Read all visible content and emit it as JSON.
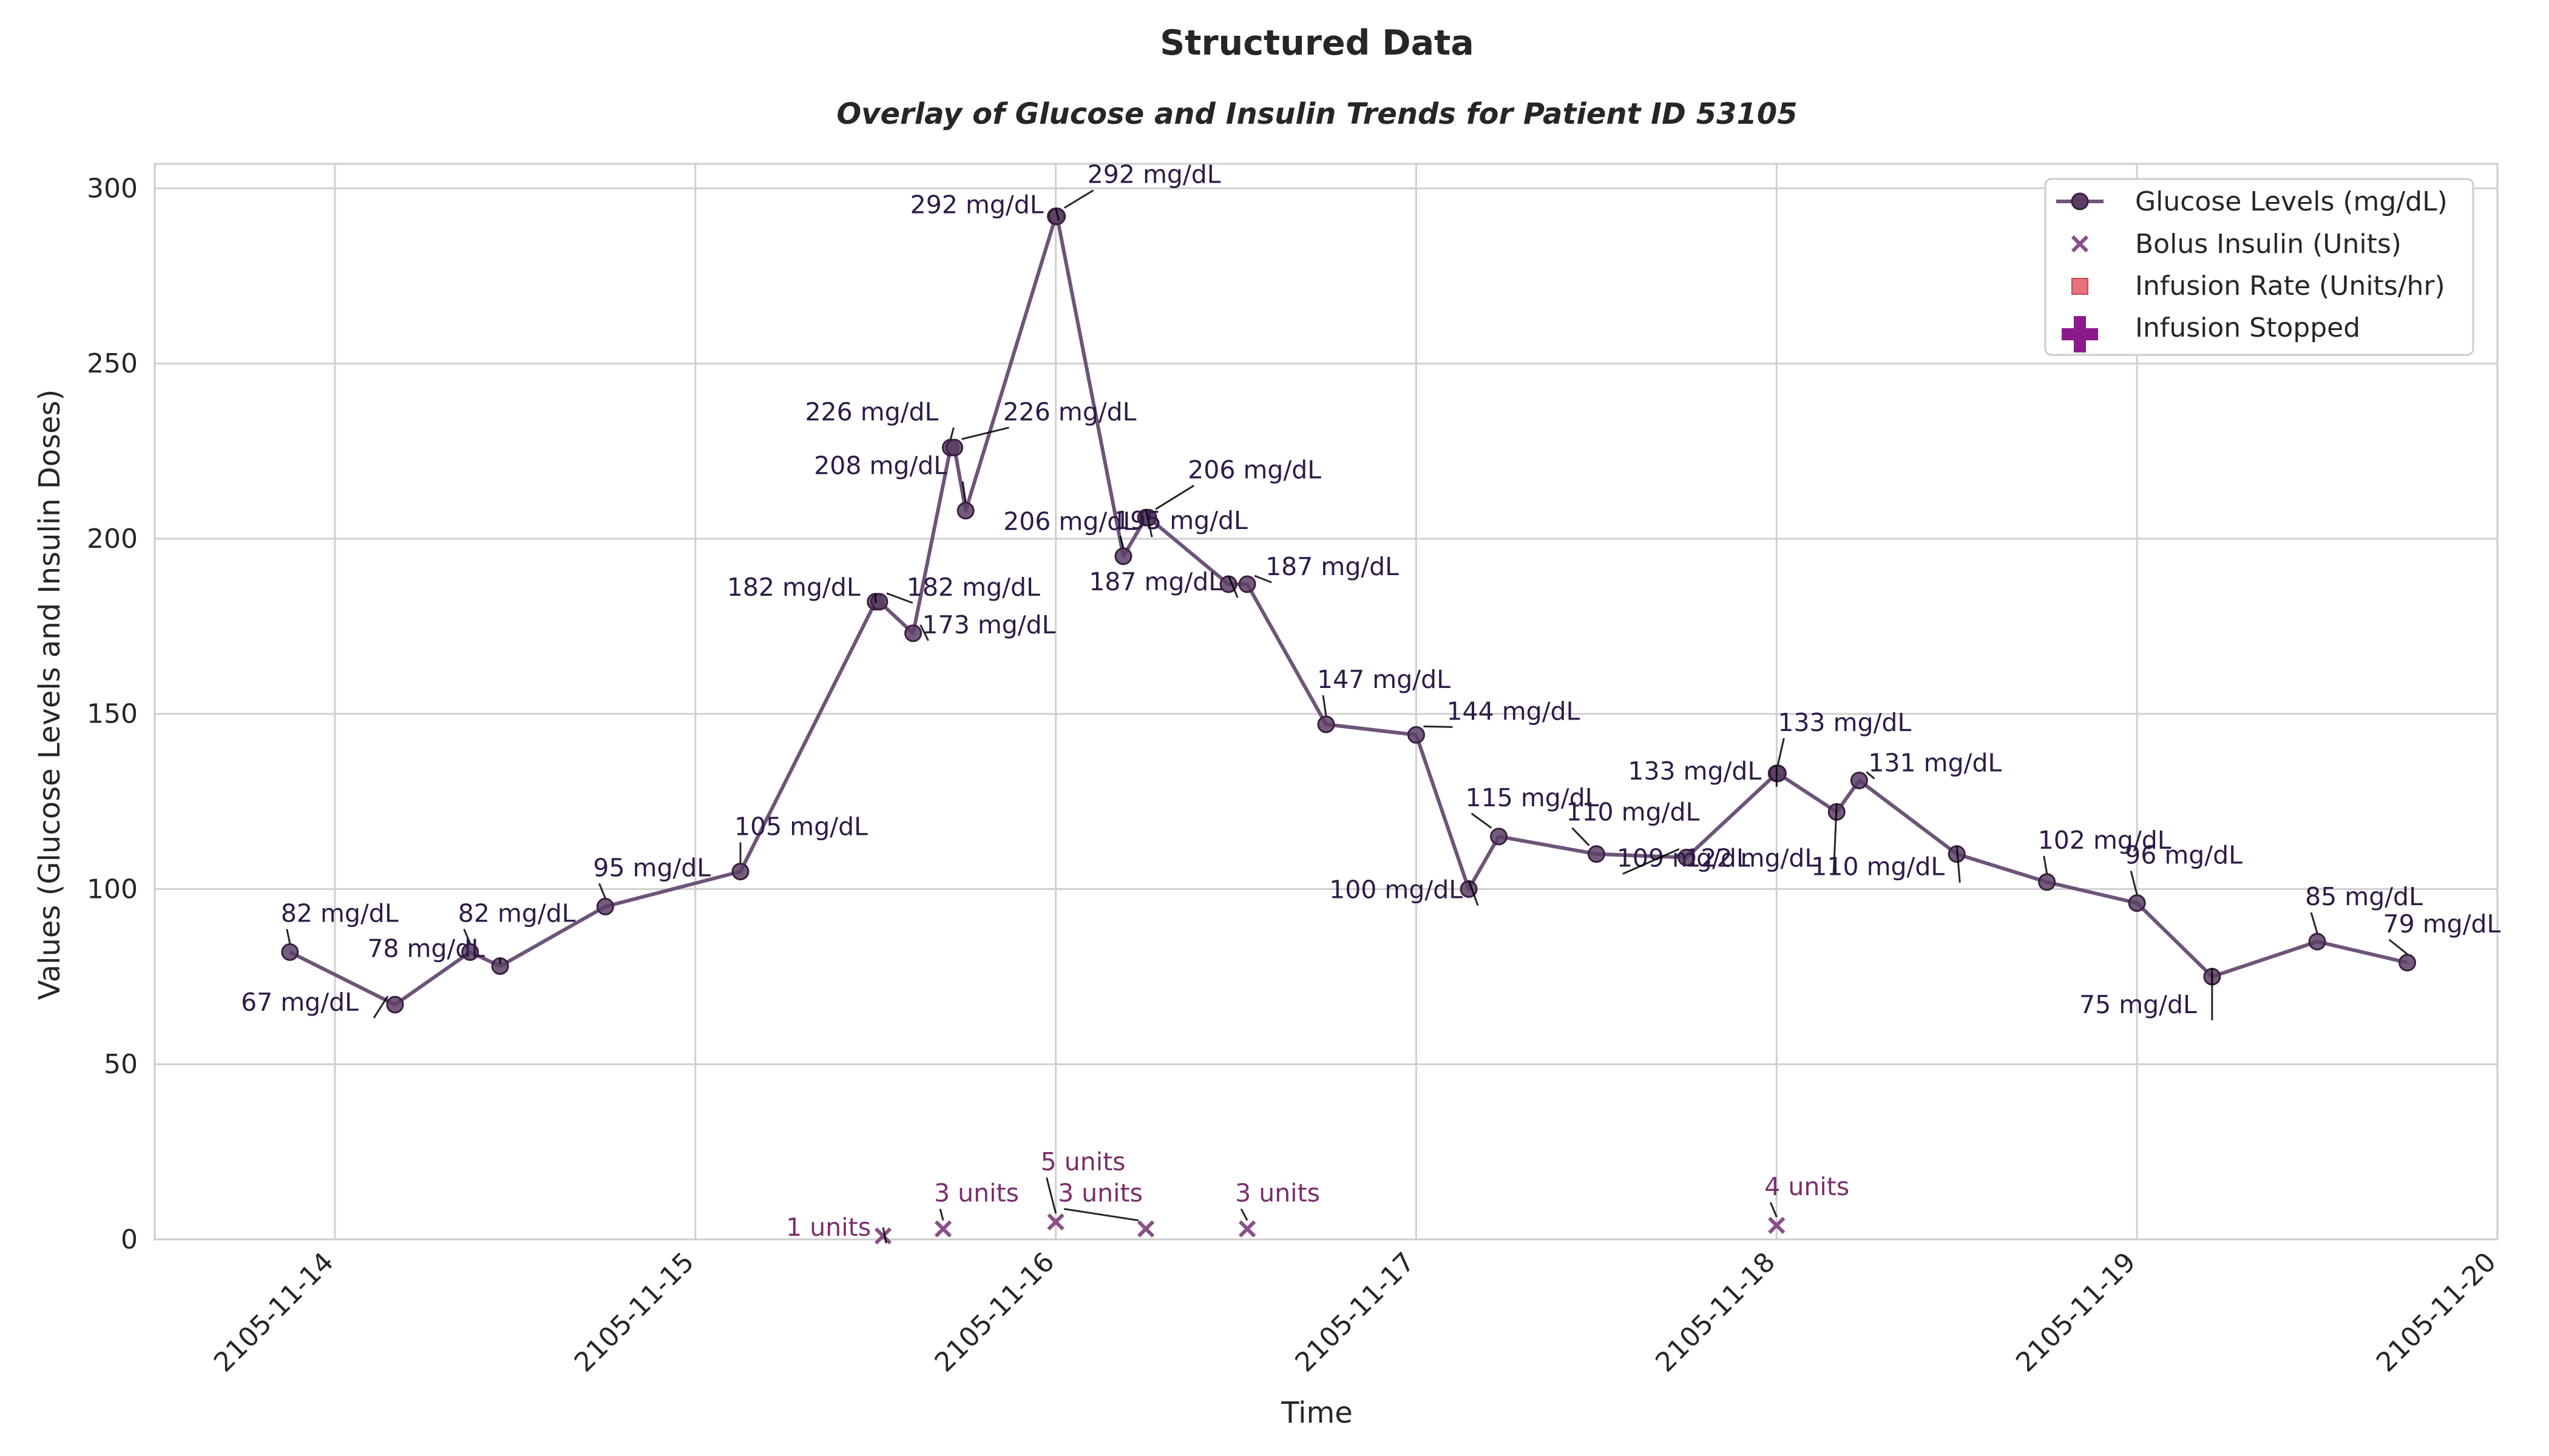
{
  "chart_data": {
    "type": "line",
    "suptitle": "Structured Data",
    "title": "Overlay of Glucose and Insulin Trends for Patient ID 53105",
    "xlabel": "Time",
    "ylabel": "Values (Glucose Levels and Insulin Doses)",
    "xlim": [
      "2105-11-13T12:00",
      "2105-11-20T00:00"
    ],
    "ylim": [
      0,
      307
    ],
    "yticks": [
      0,
      50,
      100,
      150,
      200,
      250,
      300
    ],
    "xticks": [
      "2105-11-14",
      "2105-11-15",
      "2105-11-16",
      "2105-11-17",
      "2105-11-18",
      "2105-11-19",
      "2105-11-20"
    ],
    "grid": true,
    "legend_position": "top-right",
    "colors": {
      "glucose": "#6e5478",
      "glucose_dark": "#3b1f40",
      "bolus": "#8a4f86",
      "infusion": "#e8707a",
      "stopped": "#8b1a8b"
    },
    "legend": [
      {
        "label": "Glucose Levels (mg/dL)",
        "marker": "line-circle"
      },
      {
        "label": "Bolus Insulin (Units)",
        "marker": "x"
      },
      {
        "label": "Infusion Rate (Units/hr)",
        "marker": "square"
      },
      {
        "label": "Infusion Stopped",
        "marker": "plus"
      }
    ],
    "series": [
      {
        "name": "Glucose Levels (mg/dL)",
        "points": [
          {
            "x": "2105-11-13T21:00",
            "y": 82,
            "label": "82 mg/dL"
          },
          {
            "x": "2105-11-14T04:00",
            "y": 67,
            "label": "67 mg/dL"
          },
          {
            "x": "2105-11-14T09:00",
            "y": 82,
            "label": "82 mg/dL"
          },
          {
            "x": "2105-11-14T11:00",
            "y": 78,
            "label": "78 mg/dL"
          },
          {
            "x": "2105-11-14T18:00",
            "y": 95,
            "label": "95 mg/dL"
          },
          {
            "x": "2105-11-15T03:00",
            "y": 105,
            "label": "105 mg/dL"
          },
          {
            "x": "2105-11-15T12:00",
            "y": 182,
            "label": "182 mg/dL"
          },
          {
            "x": "2105-11-15T12:15",
            "y": 182,
            "label": "182 mg/dL"
          },
          {
            "x": "2105-11-15T14:30",
            "y": 173,
            "label": "173 mg/dL"
          },
          {
            "x": "2105-11-15T17:00",
            "y": 226,
            "label": "226 mg/dL"
          },
          {
            "x": "2105-11-15T17:15",
            "y": 226,
            "label": "226 mg/dL"
          },
          {
            "x": "2105-11-15T18:00",
            "y": 208,
            "label": "208 mg/dL"
          },
          {
            "x": "2105-11-16T00:00",
            "y": 292,
            "label": "292 mg/dL"
          },
          {
            "x": "2105-11-16T00:05",
            "y": 292,
            "label": "292 mg/dL"
          },
          {
            "x": "2105-11-16T04:30",
            "y": 195,
            "label": "195 mg/dL"
          },
          {
            "x": "2105-11-16T06:00",
            "y": 206,
            "label": "206 mg/dL"
          },
          {
            "x": "2105-11-16T06:10",
            "y": 206,
            "label": "206 mg/dL"
          },
          {
            "x": "2105-11-16T11:30",
            "y": 187,
            "label": "187 mg/dL"
          },
          {
            "x": "2105-11-16T12:45",
            "y": 187,
            "label": "187 mg/dL"
          },
          {
            "x": "2105-11-16T18:00",
            "y": 147,
            "label": "147 mg/dL"
          },
          {
            "x": "2105-11-17T00:00",
            "y": 144,
            "label": "144 mg/dL"
          },
          {
            "x": "2105-11-17T03:30",
            "y": 100,
            "label": "100 mg/dL"
          },
          {
            "x": "2105-11-17T05:30",
            "y": 115,
            "label": "115 mg/dL"
          },
          {
            "x": "2105-11-17T12:00",
            "y": 110,
            "label": "110 mg/dL"
          },
          {
            "x": "2105-11-17T18:00",
            "y": 109,
            "label": "109 mg/dL"
          },
          {
            "x": "2105-11-18T00:00",
            "y": 133,
            "label": "133 mg/dL"
          },
          {
            "x": "2105-11-18T00:05",
            "y": 133,
            "label": "133 mg/dL"
          },
          {
            "x": "2105-11-18T04:00",
            "y": 122,
            "label": "122 mg/dL"
          },
          {
            "x": "2105-11-18T05:30",
            "y": 131,
            "label": "131 mg/dL"
          },
          {
            "x": "2105-11-18T12:00",
            "y": 110,
            "label": "110 mg/dL"
          },
          {
            "x": "2105-11-18T18:00",
            "y": 102,
            "label": "102 mg/dL"
          },
          {
            "x": "2105-11-19T00:00",
            "y": 96,
            "label": "96 mg/dL"
          },
          {
            "x": "2105-11-19T05:00",
            "y": 75,
            "label": "75 mg/dL"
          },
          {
            "x": "2105-11-19T12:00",
            "y": 85,
            "label": "85 mg/dL"
          },
          {
            "x": "2105-11-19T18:00",
            "y": 79,
            "label": "79 mg/dL"
          }
        ]
      },
      {
        "name": "Bolus Insulin (Units)",
        "points": [
          {
            "x": "2105-11-15T12:30",
            "y": 1,
            "label": "1 units"
          },
          {
            "x": "2105-11-15T16:30",
            "y": 3,
            "label": "3 units"
          },
          {
            "x": "2105-11-16T00:00",
            "y": 5,
            "label": "5 units"
          },
          {
            "x": "2105-11-16T06:00",
            "y": 3,
            "label": "3 units"
          },
          {
            "x": "2105-11-16T12:45",
            "y": 3,
            "label": "3 units"
          },
          {
            "x": "2105-11-18T00:00",
            "y": 4,
            "label": "4 units"
          }
        ]
      },
      {
        "name": "Infusion Rate (Units/hr)",
        "points": []
      },
      {
        "name": "Infusion Stopped",
        "points": []
      }
    ]
  }
}
